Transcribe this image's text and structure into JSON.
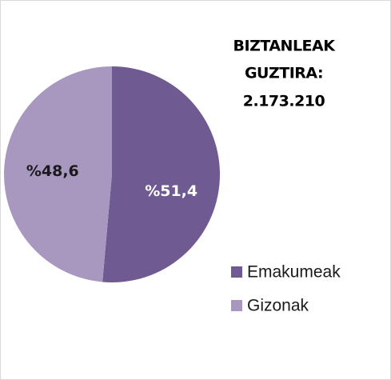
{
  "chart_data": {
    "type": "pie",
    "title_lines": [
      "BIZTANLEAK",
      "GUZTIRA:",
      "2.173.210"
    ],
    "categories": [
      "Emakumeak",
      "Gizonak"
    ],
    "values": [
      51.4,
      48.6
    ],
    "value_labels": [
      "%51,4",
      "%48,6"
    ],
    "colors": [
      "#705a92",
      "#a898c0"
    ],
    "label_colors": [
      "#ffffff",
      "#1a1a1a"
    ],
    "legend": "right"
  }
}
